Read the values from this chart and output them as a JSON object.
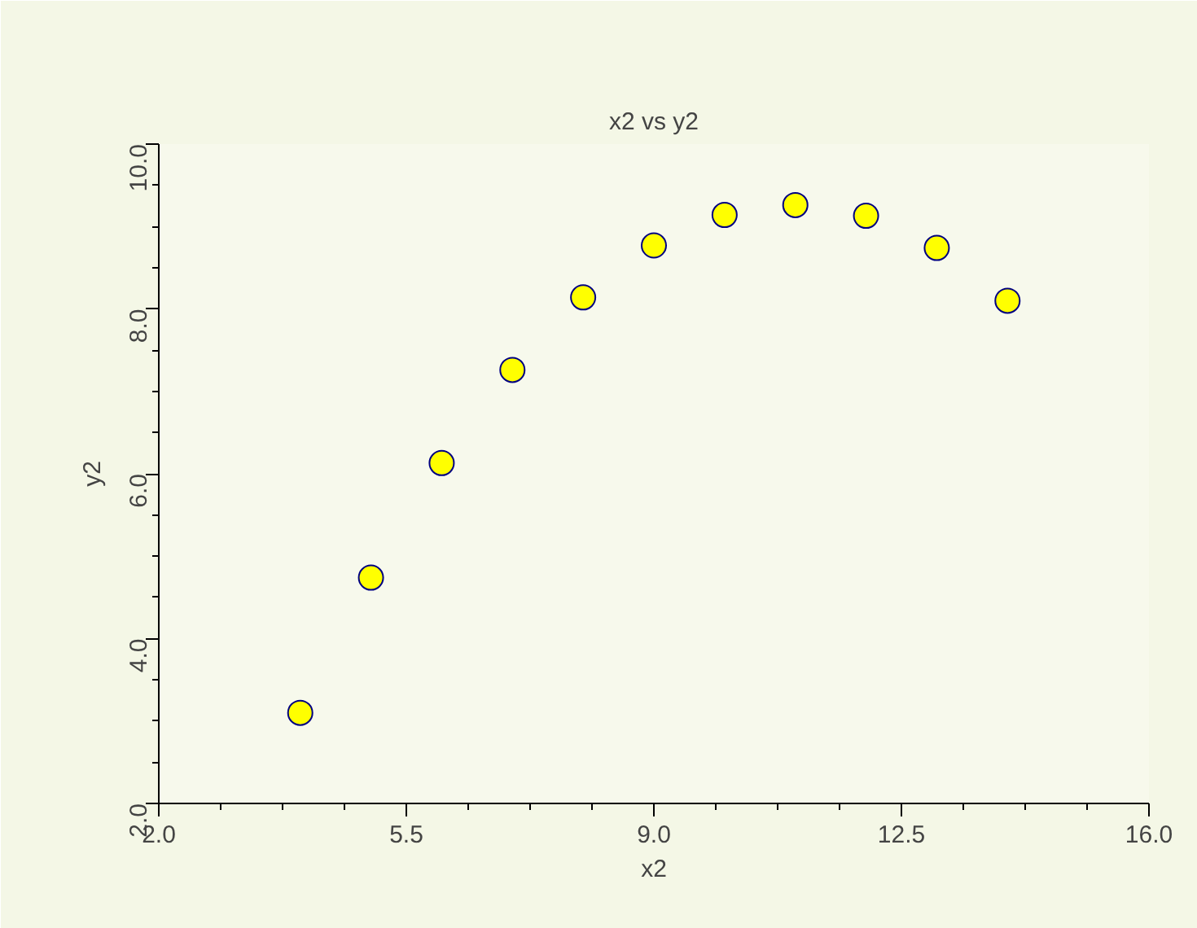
{
  "chart_data": {
    "type": "scatter",
    "title": "x2 vs y2",
    "xlabel": "x2",
    "ylabel": "y2",
    "x": [
      4,
      5,
      6,
      7,
      8,
      9,
      10,
      11,
      12,
      13,
      14
    ],
    "series": [
      {
        "color": "#ffff00",
        "values": [
          3.1,
          4.74,
          6.13,
          7.26,
          8.14,
          8.77,
          9.14,
          9.26,
          9.13,
          8.74,
          8.1
        ]
      }
    ],
    "xlim": [
      2,
      16
    ],
    "ylim": [
      2,
      10
    ],
    "xticks": [
      {
        "value": 2,
        "label": "2.0"
      },
      {
        "value": 5.5,
        "label": "5.5"
      },
      {
        "value": 9,
        "label": "9.0"
      },
      {
        "value": 12.5,
        "label": "12.5"
      },
      {
        "value": 16,
        "label": "16.0"
      }
    ],
    "yticks": [
      {
        "value": 2,
        "label": "2.0"
      },
      {
        "value": 4,
        "label": "4.0"
      },
      {
        "value": 6,
        "label": "6.0"
      },
      {
        "value": 8,
        "label": "8.0"
      },
      {
        "value": 10,
        "label": "10.0"
      }
    ],
    "marker": "circle",
    "grid": false
  }
}
